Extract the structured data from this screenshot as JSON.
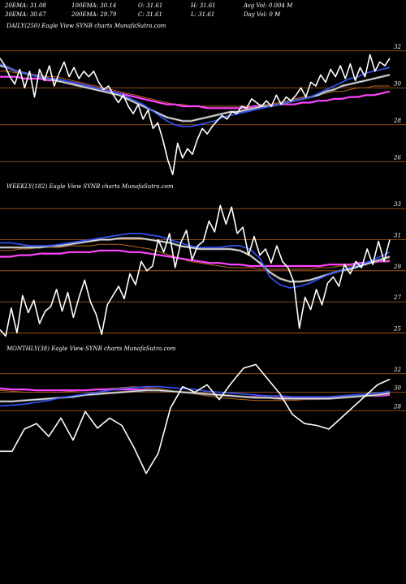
{
  "header": {
    "row1": [
      "20EMA: 31.08",
      "100EMA: 30.14",
      "O: 31.61",
      "H: 31.61",
      "Avg Vol: 0.004  M"
    ],
    "row2": [
      "30EMA: 30.67",
      "200EMA: 29.79",
      "C: 31.61",
      "L: 31.61",
      "Day Vol: 0  M"
    ]
  },
  "colors": {
    "background": "#000000",
    "price": "#ffffff",
    "ema_fast": "#3355ff",
    "ema_slow": "#ff44ff",
    "ema_brown": "#b8651c",
    "gridline": "#b8651c"
  },
  "chart_data": [
    {
      "type": "line",
      "title": "DAILY(250) Eagle  View  SYNB charts MunafaSutra.com",
      "ylim": [
        25,
        33
      ],
      "yticks": [
        32,
        30,
        28,
        26
      ],
      "series": [
        {
          "name": "price",
          "values": [
            31.6,
            31.2,
            30.6,
            30.2,
            31.0,
            30.0,
            30.9,
            29.5,
            31.0,
            30.4,
            31.2,
            30.1,
            30.8,
            31.4,
            30.6,
            31.1,
            30.5,
            30.9,
            30.6,
            30.9,
            30.3,
            29.9,
            30.1,
            29.6,
            29.2,
            29.6,
            29.0,
            28.6,
            29.1,
            28.3,
            28.8,
            27.8,
            28.1,
            27.2,
            26.1,
            25.3,
            27.0,
            26.2,
            26.7,
            26.4,
            27.2,
            27.8,
            27.5,
            27.9,
            28.2,
            28.5,
            28.3,
            28.7,
            28.6,
            29.0,
            28.9,
            29.4,
            29.2,
            29.0,
            29.3,
            29.0,
            29.6,
            29.1,
            29.5,
            29.3,
            29.6,
            30.0,
            29.5,
            30.3,
            30.1,
            30.7,
            30.3,
            31.0,
            30.6,
            31.2,
            30.5,
            31.3,
            30.4,
            31.1,
            30.6,
            31.8,
            30.9,
            31.4,
            31.2,
            31.6
          ]
        },
        {
          "name": "20EMA",
          "values": [
            31.3,
            31.1,
            30.9,
            30.8,
            30.7,
            30.6,
            30.5,
            30.5,
            30.4,
            30.3,
            30.2,
            30.1,
            30.0,
            29.9,
            29.8,
            29.7,
            29.5,
            29.3,
            29.1,
            28.8,
            28.5,
            28.2,
            28.0,
            27.9,
            27.9,
            28.0,
            28.1,
            28.2,
            28.4,
            28.5,
            28.6,
            28.7,
            28.8,
            28.9,
            29.0,
            29.1,
            29.2,
            29.3,
            29.4,
            29.5,
            29.7,
            29.9,
            30.1,
            30.3,
            30.5,
            30.6,
            30.8,
            30.9,
            31.0,
            31.1
          ]
        },
        {
          "name": "30EMA",
          "values": [
            31.2,
            31.1,
            30.9,
            30.8,
            30.7,
            30.6,
            30.5,
            30.4,
            30.3,
            30.2,
            30.1,
            30.0,
            29.9,
            29.8,
            29.7,
            29.6,
            29.4,
            29.2,
            29.0,
            28.8,
            28.6,
            28.4,
            28.3,
            28.2,
            28.2,
            28.3,
            28.4,
            28.5,
            28.6,
            28.7,
            28.7,
            28.8,
            28.9,
            29.0,
            29.0,
            29.1,
            29.2,
            29.3,
            29.4,
            29.5,
            29.6,
            29.8,
            29.9,
            30.1,
            30.2,
            30.3,
            30.4,
            30.5,
            30.6,
            30.7
          ]
        },
        {
          "name": "100EMA",
          "values": [
            30.9,
            30.9,
            30.8,
            30.8,
            30.7,
            30.7,
            30.6,
            30.6,
            30.5,
            30.4,
            30.3,
            30.2,
            30.1,
            30.0,
            29.9,
            29.8,
            29.7,
            29.6,
            29.5,
            29.4,
            29.3,
            29.2,
            29.1,
            29.1,
            29.0,
            29.0,
            29.0,
            29.0,
            29.0,
            29.0,
            29.0,
            29.0,
            29.0,
            29.1,
            29.1,
            29.2,
            29.3,
            29.4,
            29.5,
            29.5,
            29.6,
            29.7,
            29.8,
            29.8,
            29.9,
            30.0,
            30.0,
            30.1,
            30.1,
            30.1
          ]
        },
        {
          "name": "200EMA",
          "values": [
            30.6,
            30.6,
            30.6,
            30.5,
            30.5,
            30.5,
            30.4,
            30.4,
            30.3,
            30.3,
            30.2,
            30.1,
            30.0,
            29.9,
            29.8,
            29.7,
            29.6,
            29.5,
            29.4,
            29.3,
            29.2,
            29.1,
            29.1,
            29.0,
            29.0,
            29.0,
            28.9,
            28.9,
            28.9,
            28.9,
            28.9,
            28.9,
            29.0,
            29.0,
            29.0,
            29.1,
            29.1,
            29.1,
            29.2,
            29.2,
            29.3,
            29.3,
            29.4,
            29.4,
            29.5,
            29.5,
            29.6,
            29.6,
            29.7,
            29.8
          ]
        }
      ]
    },
    {
      "type": "line",
      "title": "WEEKLY(182) Eagle  View  SYNB charts MunafaSutra.com",
      "ylim": [
        24.5,
        34
      ],
      "yticks": [
        33,
        31,
        29,
        27,
        25
      ],
      "series": [
        {
          "name": "price",
          "values": [
            25.2,
            24.8,
            26.6,
            25.0,
            27.4,
            26.3,
            27.1,
            25.6,
            26.4,
            26.7,
            27.8,
            26.4,
            27.6,
            26.0,
            27.3,
            28.4,
            27.0,
            26.2,
            24.9,
            26.8,
            27.4,
            28.0,
            27.2,
            28.8,
            28.1,
            29.6,
            29.0,
            29.3,
            31.0,
            30.2,
            31.4,
            29.2,
            30.8,
            31.6,
            29.7,
            30.6,
            30.9,
            32.2,
            31.5,
            33.2,
            32.0,
            33.1,
            31.4,
            31.8,
            30.0,
            31.2,
            30.0,
            30.4,
            29.5,
            30.6,
            29.6,
            29.2,
            28.3,
            25.3,
            27.3,
            26.5,
            27.8,
            26.8,
            28.2,
            28.6,
            28.0,
            29.4,
            28.8,
            29.6,
            29.2,
            30.4,
            29.4,
            30.9,
            29.6,
            31.0
          ]
        },
        {
          "name": "20EMA",
          "values": [
            30.8,
            30.8,
            30.7,
            30.6,
            30.6,
            30.6,
            30.7,
            30.8,
            30.9,
            31.0,
            31.1,
            31.2,
            31.3,
            31.4,
            31.4,
            31.3,
            31.2,
            31.0,
            30.8,
            30.6,
            30.5,
            30.5,
            30.5,
            30.6,
            30.6,
            30.4,
            29.8,
            28.6,
            28.1,
            27.9,
            28.0,
            28.2,
            28.5,
            28.8,
            29.0,
            29.2,
            29.4,
            29.6,
            29.9,
            30.2
          ]
        },
        {
          "name": "30EMA",
          "values": [
            30.5,
            30.5,
            30.5,
            30.5,
            30.5,
            30.6,
            30.6,
            30.7,
            30.8,
            30.9,
            31.0,
            31.0,
            31.1,
            31.1,
            31.1,
            31.0,
            30.9,
            30.8,
            30.6,
            30.5,
            30.4,
            30.4,
            30.4,
            30.4,
            30.3,
            30.0,
            29.5,
            28.9,
            28.5,
            28.3,
            28.3,
            28.4,
            28.6,
            28.8,
            29.0,
            29.1,
            29.3,
            29.5,
            29.7,
            29.9
          ]
        },
        {
          "name": "100EMA",
          "values": [
            30.3,
            30.3,
            30.4,
            30.4,
            30.5,
            30.5,
            30.5,
            30.6,
            30.6,
            30.6,
            30.7,
            30.7,
            30.7,
            30.6,
            30.5,
            30.4,
            30.2,
            30.0,
            29.8,
            29.6,
            29.5,
            29.4,
            29.3,
            29.2,
            29.2,
            29.2,
            29.1,
            29.1,
            29.1,
            29.1,
            29.1,
            29.1,
            29.2,
            29.2,
            29.3,
            29.3,
            29.4,
            29.5,
            29.6,
            29.7
          ]
        },
        {
          "name": "200EMA",
          "values": [
            29.9,
            29.9,
            30.0,
            30.0,
            30.1,
            30.1,
            30.1,
            30.2,
            30.2,
            30.2,
            30.3,
            30.3,
            30.3,
            30.2,
            30.2,
            30.1,
            30.0,
            29.9,
            29.8,
            29.7,
            29.6,
            29.5,
            29.5,
            29.4,
            29.4,
            29.3,
            29.3,
            29.3,
            29.3,
            29.3,
            29.3,
            29.3,
            29.3,
            29.4,
            29.4,
            29.4,
            29.5,
            29.5,
            29.6,
            29.6
          ]
        }
      ]
    },
    {
      "type": "line",
      "title": "MONTHLY(38) Eagle  View  SYNB charts MunafaSutra.com",
      "ylim": [
        18,
        34
      ],
      "yticks": [
        32,
        30,
        28
      ],
      "series": [
        {
          "name": "price",
          "values": [
            23.6,
            23.6,
            26.0,
            26.6,
            25.2,
            27.2,
            24.8,
            27.9,
            26.1,
            27.2,
            26.4,
            24.0,
            21.2,
            23.4,
            28.3,
            30.6,
            30.0,
            30.8,
            29.2,
            31.0,
            32.6,
            33.0,
            31.4,
            29.8,
            27.6,
            26.6,
            26.4,
            26.0,
            27.2,
            28.4,
            29.6,
            30.8,
            31.4
          ]
        },
        {
          "name": "20EMA",
          "values": [
            28.5,
            28.6,
            28.7,
            28.9,
            29.1,
            29.4,
            29.6,
            29.8,
            30.0,
            30.2,
            30.4,
            30.5,
            30.6,
            30.6,
            30.5,
            30.4,
            30.3,
            30.1,
            30.0,
            29.9,
            29.8,
            29.7,
            29.6,
            29.6,
            29.5,
            29.5,
            29.5,
            29.5,
            29.6,
            29.7,
            29.8,
            29.9,
            30.1
          ]
        },
        {
          "name": "30EMA",
          "values": [
            29.0,
            29.0,
            29.1,
            29.2,
            29.3,
            29.4,
            29.5,
            29.7,
            29.8,
            29.9,
            30.0,
            30.1,
            30.2,
            30.2,
            30.1,
            30.0,
            29.9,
            29.8,
            29.7,
            29.6,
            29.5,
            29.4,
            29.4,
            29.3,
            29.3,
            29.3,
            29.3,
            29.3,
            29.4,
            29.5,
            29.6,
            29.7,
            29.9
          ]
        },
        {
          "name": "100EMA",
          "values": [
            30.2,
            30.1,
            30.0,
            30.0,
            30.0,
            30.0,
            30.1,
            30.2,
            30.3,
            30.4,
            30.5,
            30.6,
            30.5,
            30.4,
            30.2,
            30.0,
            29.8,
            29.6,
            29.4,
            29.3,
            29.2,
            29.1,
            29.1,
            29.1,
            29.1,
            29.2,
            29.2,
            29.3,
            29.4,
            29.5,
            29.6,
            29.7,
            29.8
          ]
        },
        {
          "name": "200EMA",
          "values": [
            30.4,
            30.3,
            30.3,
            30.2,
            30.2,
            30.2,
            30.2,
            30.2,
            30.3,
            30.3,
            30.3,
            30.3,
            30.3,
            30.2,
            30.1,
            30.0,
            29.9,
            29.8,
            29.7,
            29.6,
            29.5,
            29.5,
            29.4,
            29.4,
            29.4,
            29.4,
            29.4,
            29.4,
            29.5,
            29.5,
            29.6,
            29.6,
            29.7
          ]
        }
      ]
    }
  ]
}
